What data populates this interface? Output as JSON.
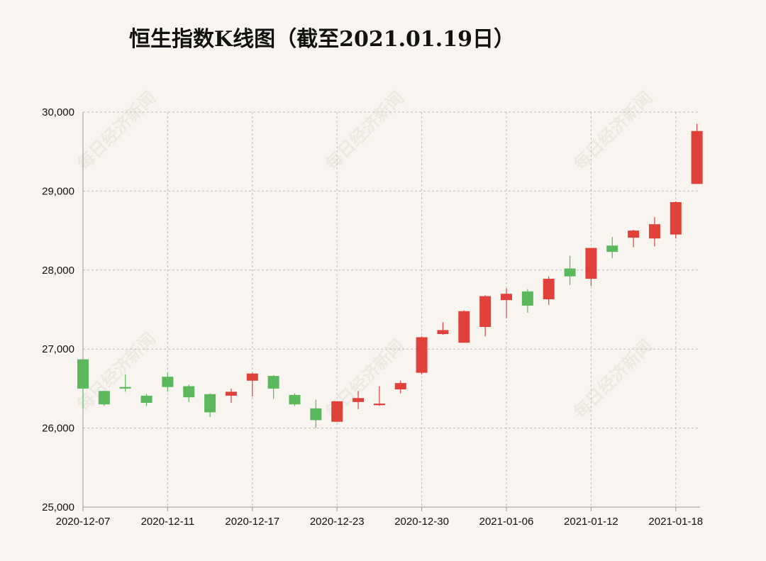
{
  "chart_data": {
    "type": "candlestick",
    "title": "恒生指数K线图（截至2021.01.19日）",
    "watermark": "每日经济新闻",
    "y_range": [
      25000,
      30000
    ],
    "y_ticks": [
      "25,000",
      "26,000",
      "27,000",
      "28,000",
      "29,000",
      "30,000"
    ],
    "y_tick_values": [
      25000,
      26000,
      27000,
      28000,
      29000,
      30000
    ],
    "x_ticks": [
      "2020-12-07",
      "2020-12-11",
      "2020-12-17",
      "2020-12-23",
      "2020-12-30",
      "2021-01-06",
      "2021-01-12",
      "2021-01-18"
    ],
    "x_tick_indices": [
      0,
      4,
      8,
      12,
      16,
      20,
      24,
      28
    ],
    "grid": true,
    "colors": {
      "up": "#e0413a",
      "down": "#5cb85c"
    },
    "candles": [
      {
        "open": 26870,
        "high": 26880,
        "low": 26250,
        "close": 26500
      },
      {
        "open": 26470,
        "high": 26470,
        "low": 26280,
        "close": 26300
      },
      {
        "open": 26520,
        "high": 26680,
        "low": 26460,
        "close": 26500
      },
      {
        "open": 26410,
        "high": 26430,
        "low": 26280,
        "close": 26320
      },
      {
        "open": 26650,
        "high": 26700,
        "low": 26460,
        "close": 26520
      },
      {
        "open": 26530,
        "high": 26550,
        "low": 26330,
        "close": 26390
      },
      {
        "open": 26430,
        "high": 26440,
        "low": 26140,
        "close": 26200
      },
      {
        "open": 26410,
        "high": 26500,
        "low": 26320,
        "close": 26460
      },
      {
        "open": 26600,
        "high": 26700,
        "low": 26400,
        "close": 26690
      },
      {
        "open": 26660,
        "high": 26670,
        "low": 26370,
        "close": 26500
      },
      {
        "open": 26420,
        "high": 26440,
        "low": 26280,
        "close": 26300
      },
      {
        "open": 26250,
        "high": 26360,
        "low": 26000,
        "close": 26100
      },
      {
        "open": 26080,
        "high": 26340,
        "low": 26080,
        "close": 26340
      },
      {
        "open": 26330,
        "high": 26470,
        "low": 26240,
        "close": 26380
      },
      {
        "open": 26290,
        "high": 26530,
        "low": 26280,
        "close": 26310
      },
      {
        "open": 26490,
        "high": 26600,
        "low": 26440,
        "close": 26570
      },
      {
        "open": 26700,
        "high": 27160,
        "low": 26680,
        "close": 27150
      },
      {
        "open": 27190,
        "high": 27340,
        "low": 27180,
        "close": 27240
      },
      {
        "open": 27080,
        "high": 27490,
        "low": 27080,
        "close": 27480
      },
      {
        "open": 27280,
        "high": 27680,
        "low": 27160,
        "close": 27670
      },
      {
        "open": 27620,
        "high": 27770,
        "low": 27390,
        "close": 27700
      },
      {
        "open": 27730,
        "high": 27760,
        "low": 27460,
        "close": 27550
      },
      {
        "open": 27630,
        "high": 27920,
        "low": 27560,
        "close": 27890
      },
      {
        "open": 28020,
        "high": 28180,
        "low": 27810,
        "close": 27920
      },
      {
        "open": 27890,
        "high": 28280,
        "low": 27800,
        "close": 28280
      },
      {
        "open": 28310,
        "high": 28420,
        "low": 28150,
        "close": 28230
      },
      {
        "open": 28410,
        "high": 28510,
        "low": 28290,
        "close": 28500
      },
      {
        "open": 28400,
        "high": 28670,
        "low": 28300,
        "close": 28580
      },
      {
        "open": 28450,
        "high": 28870,
        "low": 28400,
        "close": 28860
      },
      {
        "open": 29090,
        "high": 29850,
        "low": 29090,
        "close": 29760
      }
    ]
  }
}
